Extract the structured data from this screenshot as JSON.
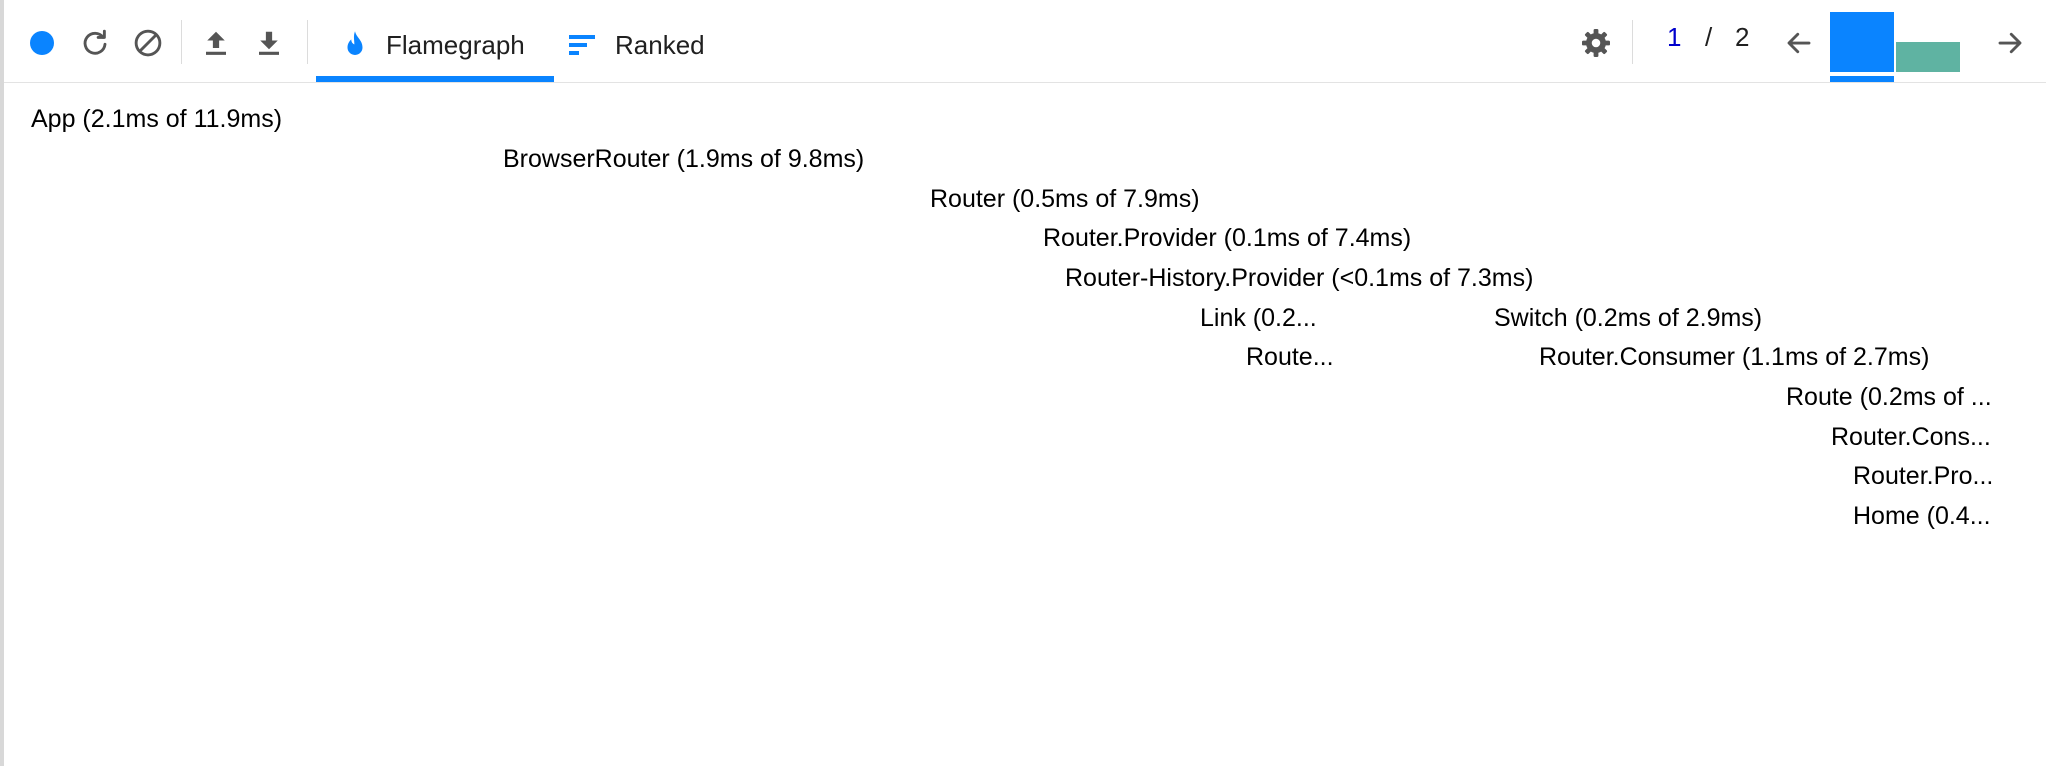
{
  "toolbar": {
    "record_icon": "record-icon",
    "reload_icon": "reload-and-profile-icon",
    "clear_icon": "clear-icon",
    "load_icon": "load-profile-icon",
    "save_icon": "save-profile-icon",
    "settings_icon": "gear-icon",
    "prev_icon": "arrow-left-icon",
    "next_icon": "arrow-right-icon"
  },
  "tabs": [
    {
      "label": "Flamegraph",
      "icon": "flame-icon",
      "active": true
    },
    {
      "label": "Ranked",
      "icon": "ranked-icon",
      "active": false
    }
  ],
  "commit_nav": {
    "current": "1",
    "separator": "/",
    "total": "2"
  },
  "commits": [
    {
      "relative_duration": 1.0,
      "selected": true,
      "color": "#0a84ff"
    },
    {
      "relative_duration": 0.5,
      "selected": false,
      "color": "#5fb3a2"
    }
  ],
  "colors": {
    "accent": "#0a84ff",
    "yellow_orange": "#ffbd39",
    "amber": "#f0bb4a",
    "sage": "#82b291",
    "teal": "#37b0a6",
    "light_teal": "#67b59d",
    "olive": "#c4b873",
    "mint": "#5fb3a2"
  },
  "flamegraph": {
    "frames": [
      {
        "label": "App (2.1ms of 11.9ms)",
        "color": "#ffbd39"
      },
      {
        "label": "BrowserRouter (1.9ms of 9.8ms)",
        "color": "#f0bb4a"
      },
      {
        "label": "Router (0.5ms of 7.9ms)",
        "color": "#82b291"
      },
      {
        "label": "Router.Provider (0.1ms of 7.4ms)",
        "color": "#37b0a6"
      },
      {
        "label": "Router-History.Provider (<0.1ms of 7.3ms)",
        "color": "#37b0a6"
      },
      {
        "label": "Link (0.2...",
        "color": "#67b59d"
      },
      {
        "label": "",
        "color": "#37b0a6"
      },
      {
        "label": "",
        "color": "#37b0a6"
      },
      {
        "label": "Switch (0.2ms of 2.9ms)",
        "color": "#67b59d"
      },
      {
        "label": "Route...",
        "color": "#67b59d"
      },
      {
        "label": "",
        "color": "#37b0a6"
      },
      {
        "label": "",
        "color": "#37b0a6"
      },
      {
        "label": "Router.Consumer (1.1ms of 2.7ms)",
        "color": "#c4b873"
      },
      {
        "label": "",
        "color": "#37b0a6"
      },
      {
        "label": "",
        "color": "#37b0a6"
      },
      {
        "label": "",
        "color": "#37b0a6"
      },
      {
        "label": "Route (0.2ms of ...",
        "color": "#67b59d"
      },
      {
        "label": "Router.Cons...",
        "color": "#37b0a6"
      },
      {
        "label": "Router.Pro...",
        "color": "#37b0a6"
      },
      {
        "label": "Home (0.4...",
        "color": "#82b291"
      },
      {
        "label": "",
        "color": "#37b0a6"
      },
      {
        "label": "",
        "color": "#37b0a6"
      },
      {
        "label": "",
        "color": "#67b59d"
      }
    ]
  }
}
